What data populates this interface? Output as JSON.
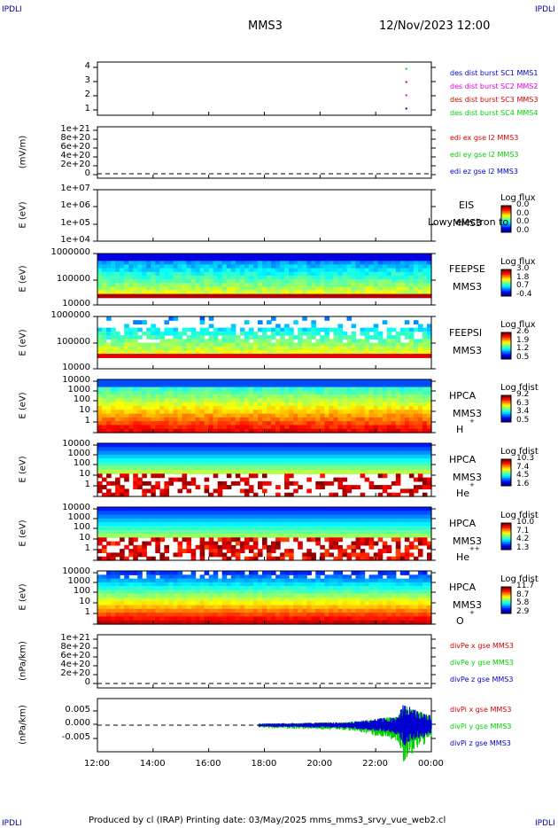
{
  "header": {
    "left_logo": "IPDLI",
    "right_logo": "IPDLI",
    "spacecraft": "MMS3",
    "datetime": "12/Nov/2023 12:00"
  },
  "footer": {
    "left_logo": "IPDLI",
    "right_logo": "IPDLI",
    "text": "Produced by cl (IRAP)   Printing date: 03/May/2025   mms_mms3_srvy_vue_web2.cl"
  },
  "colors": {
    "red": "#d00000",
    "magenta": "#e000e0",
    "green": "#00d000",
    "blue": "#0000d0"
  },
  "chart_data": [
    {
      "type": "scatter",
      "id": "des_dist",
      "yticks": [
        "4",
        "3",
        "2",
        "1"
      ],
      "ylim": [
        0.5,
        4.5
      ],
      "legend": [
        {
          "name": "des dist burst SC1 MMS1",
          "color": "#0000d0"
        },
        {
          "name": "des dist burst SC2 MMS2",
          "color": "#e000e0"
        },
        {
          "name": "des dist burst SC3 MMS3",
          "color": "#d00000"
        },
        {
          "name": "des dist burst SC4 MMS4",
          "color": "#00d000"
        }
      ],
      "points": [
        {
          "x": 23.1,
          "y": 4,
          "color": "#00d000"
        },
        {
          "x": 23.1,
          "y": 3,
          "color": "#d00000"
        },
        {
          "x": 23.1,
          "y": 2,
          "color": "#e000e0"
        },
        {
          "x": 23.1,
          "y": 1,
          "color": "#0000d0"
        }
      ]
    },
    {
      "type": "line",
      "id": "edi",
      "ylabel": "(mV/m)",
      "yticks": [
        "1e+21",
        "8e+20",
        "6e+20",
        "4e+20",
        "2e+20",
        "0"
      ],
      "legend": [
        {
          "name": "edi ex gse l2 MMS3",
          "color": "#d00000"
        },
        {
          "name": "edi ey gse l2 MMS3",
          "color": "#00d000"
        },
        {
          "name": "edi ez gse l2 MMS3",
          "color": "#0000d0"
        }
      ]
    },
    {
      "type": "heatmap",
      "id": "eis",
      "ylabel": "E (eV)",
      "yticks": [
        "1e+07",
        "1e+06",
        "1e+05",
        "1e+04"
      ],
      "instrument": "EIS",
      "spacecraft": "MMS3",
      "extra": "Lowy electron to",
      "cbar_title": "Log flux",
      "cbar_ticks": [
        "0.0",
        "0.0",
        "0.0",
        "0.0"
      ]
    },
    {
      "type": "heatmap",
      "id": "feepse",
      "ylabel": "E (eV)",
      "yticks": [
        "1000000",
        "100000",
        "10000"
      ],
      "instrument": "FEEPSE",
      "spacecraft": "MMS3",
      "cbar_title": "Log flux",
      "cbar_ticks": [
        "3.0",
        "1.8",
        "0.7",
        "-0.4"
      ]
    },
    {
      "type": "heatmap",
      "id": "feepsi",
      "ylabel": "E (eV)",
      "yticks": [
        "1000000",
        "100000",
        "10000"
      ],
      "instrument": "FEEPSI",
      "spacecraft": "MMS3",
      "cbar_title": "Log flux",
      "cbar_ticks": [
        "2.6",
        "1.9",
        "1.2",
        "0.5"
      ]
    },
    {
      "type": "heatmap",
      "id": "hpca_h",
      "ylabel": "E (eV)",
      "yticks": [
        "10000",
        "1000",
        "100",
        "10",
        "1"
      ],
      "instrument": "HPCA",
      "spacecraft": "MMS3",
      "species": "H",
      "charge": "+",
      "cbar_title": "Log fdist",
      "cbar_ticks": [
        "9.2",
        "6.3",
        "3.4",
        "0.5"
      ]
    },
    {
      "type": "heatmap",
      "id": "hpca_he",
      "ylabel": "E (eV)",
      "yticks": [
        "10000",
        "1000",
        "100",
        "10",
        "1"
      ],
      "instrument": "HPCA",
      "spacecraft": "MMS3",
      "species": "He",
      "charge": "+",
      "cbar_title": "Log fdist",
      "cbar_ticks": [
        "10.3",
        "7.4",
        "4.5",
        "1.6"
      ]
    },
    {
      "type": "heatmap",
      "id": "hpca_hepp",
      "ylabel": "E (eV)",
      "yticks": [
        "10000",
        "1000",
        "100",
        "10",
        "1"
      ],
      "instrument": "HPCA",
      "spacecraft": "MMS3",
      "species": "He",
      "charge": "++",
      "cbar_title": "Log fdist",
      "cbar_ticks": [
        "10.0",
        "7.1",
        "4.2",
        "1.3"
      ]
    },
    {
      "type": "heatmap",
      "id": "hpca_o",
      "ylabel": "E (eV)",
      "yticks": [
        "10000",
        "1000",
        "100",
        "10",
        "1"
      ],
      "instrument": "HPCA",
      "spacecraft": "MMS3",
      "species": "O",
      "charge": "+",
      "cbar_title": "Log fdist",
      "cbar_ticks": [
        "11.7",
        "8.7",
        "5.8",
        "2.9"
      ]
    },
    {
      "type": "line",
      "id": "divpe",
      "ylabel": "(nPa/km)",
      "yticks": [
        "1e+21",
        "8e+20",
        "6e+20",
        "4e+20",
        "2e+20",
        "0"
      ],
      "legend": [
        {
          "name": "divPe x gse MMS3",
          "color": "#d00000"
        },
        {
          "name": "divPe y gse MMS3",
          "color": "#00d000"
        },
        {
          "name": "divPe z gse MMS3",
          "color": "#0000d0"
        }
      ]
    },
    {
      "type": "line",
      "id": "divpi",
      "ylabel": "(nPa/km)",
      "yticks": [
        "0.005",
        "0.000",
        "-0.005"
      ],
      "ylim": [
        -0.0085,
        0.0085
      ],
      "legend": [
        {
          "name": "divPi x gse MMS3",
          "color": "#d00000"
        },
        {
          "name": "divPi y gse MMS3",
          "color": "#00d000"
        },
        {
          "name": "divPi z gse MMS3",
          "color": "#0000d0"
        }
      ],
      "envelope": [
        {
          "x": 17.8,
          "y": 0.0005
        },
        {
          "x": 19.0,
          "y": 0.0007
        },
        {
          "x": 21.0,
          "y": 0.001
        },
        {
          "x": 22.0,
          "y": 0.002
        },
        {
          "x": 22.8,
          "y": 0.003
        },
        {
          "x": 23.0,
          "y": 0.007
        },
        {
          "x": 23.4,
          "y": 0.005
        },
        {
          "x": 24.0,
          "y": 0.003
        }
      ]
    }
  ],
  "xaxis": {
    "ticks": [
      "12:00",
      "14:00",
      "16:00",
      "18:00",
      "20:00",
      "22:00",
      "00:00"
    ]
  }
}
